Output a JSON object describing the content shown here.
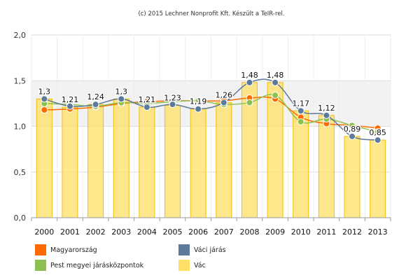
{
  "chart_data": {
    "type": "bar",
    "credit": "(c) 2015 Lechner Nonprofit Kft. Készült a TeIR-rel.",
    "categories": [
      "2000",
      "2001",
      "2002",
      "2003",
      "2004",
      "2005",
      "2006",
      "2007",
      "2008",
      "2009",
      "2010",
      "2011",
      "2012",
      "2013"
    ],
    "ylim": [
      0,
      2.0
    ],
    "yticks": [
      "0,0",
      "0,5",
      "1,0",
      "1,5",
      "2,0"
    ],
    "ytick_values": [
      0,
      0.5,
      1.0,
      1.5,
      2.0
    ],
    "grid": true,
    "legend_position": "bottom",
    "series": [
      {
        "name": "Vác",
        "type": "bar",
        "color": "#ffe066",
        "values": [
          1.3,
          1.21,
          1.24,
          1.3,
          1.21,
          1.23,
          1.19,
          1.26,
          1.48,
          1.48,
          1.17,
          1.12,
          0.89,
          0.85
        ]
      },
      {
        "name": "Magyarország",
        "type": "line",
        "color": "#ff6a00",
        "values": [
          1.18,
          1.19,
          1.21,
          1.25,
          1.27,
          1.28,
          1.28,
          1.28,
          1.31,
          1.3,
          1.1,
          1.03,
          1.01,
          0.98
        ]
      },
      {
        "name": "Pest megyei járásközpontok",
        "type": "line",
        "color": "#8cc152",
        "values": [
          1.25,
          1.24,
          1.22,
          1.26,
          1.25,
          1.27,
          1.28,
          1.24,
          1.26,
          1.34,
          1.05,
          1.08,
          1.01,
          0.94
        ]
      },
      {
        "name": "Váci járás",
        "type": "line",
        "color": "#5d7a9a",
        "values": [
          1.3,
          1.22,
          1.24,
          1.3,
          1.21,
          1.24,
          1.19,
          1.26,
          1.48,
          1.48,
          1.17,
          1.12,
          0.89,
          0.85
        ]
      }
    ],
    "data_labels": [
      "1,3",
      "1,21",
      "1,24",
      "1,3",
      "1,21",
      "1,23",
      "1,19",
      "1,26",
      "1,48",
      "1,48",
      "1,17",
      "1,12",
      "0,89",
      "0,85"
    ]
  },
  "legend": [
    {
      "name": "Magyarország",
      "color": "#ff6a00"
    },
    {
      "name": "Váci járás",
      "color": "#5d7a9a"
    },
    {
      "name": "Pest megyei járásközpontok",
      "color": "#8cc152"
    },
    {
      "name": "Vác",
      "color": "#ffe066"
    }
  ]
}
